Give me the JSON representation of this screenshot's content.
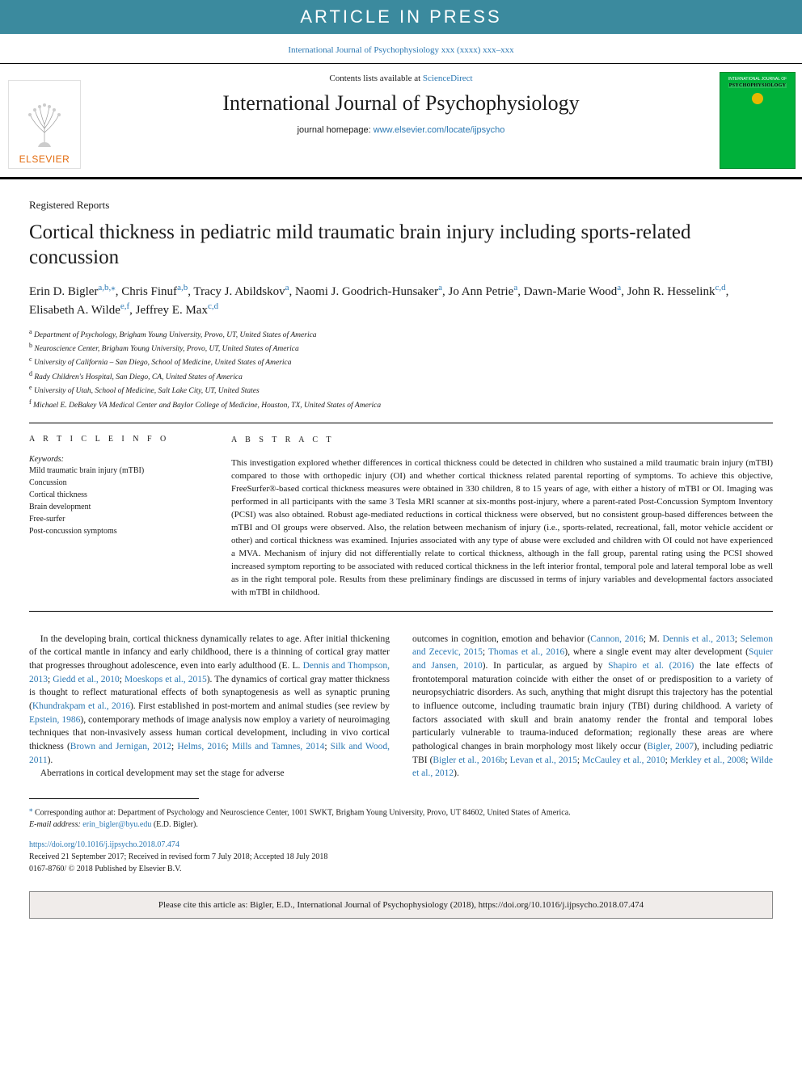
{
  "banner": "ARTICLE IN PRESS",
  "toplink_text": "International Journal of Psychophysiology xxx (xxxx) xxx–xxx",
  "header": {
    "contents_prefix": "Contents lists available at ",
    "contents_link": "ScienceDirect",
    "journal_name": "International Journal of Psychophysiology",
    "homepage_prefix": "journal homepage: ",
    "homepage_link": "www.elsevier.com/locate/ijpsycho",
    "elsevier": "ELSEVIER",
    "cover_top": "INTERNATIONAL JOURNAL OF",
    "cover_title": "PSYCHOPHYSIOLOGY"
  },
  "article_type": "Registered Reports",
  "title": "Cortical thickness in pediatric mild traumatic brain injury including sports-related concussion",
  "authors_html": "Erin D. Bigler<a>a</a><span class='star'>,</span><a>b</a><span class='star'>,</span><span class='star'>⁎</span>, Chris Finuf<a>a</a><span class='star'>,</span><a>b</a>, Tracy J. Abildskov<a>a</a>, Naomi J. Goodrich-Hunsaker<a>a</a>, Jo Ann Petrie<a>a</a>, Dawn-Marie Wood<a>a</a>, John R. Hesselink<a>c</a><span class='star'>,</span><a>d</a>, Elisabeth A. Wilde<a>e</a><span class='star'>,</span><a>f</a>, Jeffrey E. Max<a>c</a><span class='star'>,</span><a>d</a>",
  "affiliations": [
    {
      "sup": "a",
      "text": "Department of Psychology, Brigham Young University, Provo, UT, United States of America"
    },
    {
      "sup": "b",
      "text": "Neuroscience Center, Brigham Young University, Provo, UT, United States of America"
    },
    {
      "sup": "c",
      "text": "University of California – San Diego, School of Medicine, United States of America"
    },
    {
      "sup": "d",
      "text": "Rady Children's Hospital, San Diego, CA, United States of America"
    },
    {
      "sup": "e",
      "text": "University of Utah, School of Medicine, Salt Lake City, UT, United States"
    },
    {
      "sup": "f",
      "text": "Michael E. DeBakey VA Medical Center and Baylor College of Medicine, Houston, TX, United States of America"
    }
  ],
  "info_head": "A R T I C L E  I N F O",
  "keywords_head": "Keywords:",
  "keywords": [
    "Mild traumatic brain injury (mTBI)",
    "Concussion",
    "Cortical thickness",
    "Brain development",
    "Free-surfer",
    "Post-concussion symptoms"
  ],
  "abstract_head": "A B S T R A C T",
  "abstract": "This investigation explored whether differences in cortical thickness could be detected in children who sustained a mild traumatic brain injury (mTBI) compared to those with orthopedic injury (OI) and whether cortical thickness related parental reporting of symptoms. To achieve this objective, FreeSurfer®-based cortical thickness measures were obtained in 330 children, 8 to 15 years of age, with either a history of mTBI or OI. Imaging was performed in all participants with the same 3 Tesla MRI scanner at six-months post-injury, where a parent-rated Post-Concussion Symptom Inventory (PCSI) was also obtained. Robust age-mediated reductions in cortical thickness were observed, but no consistent group-based differences between the mTBI and OI groups were observed. Also, the relation between mechanism of injury (i.e., sports-related, recreational, fall, motor vehicle accident or other) and cortical thickness was examined. Injuries associated with any type of abuse were excluded and children with OI could not have experienced a MVA. Mechanism of injury did not differentially relate to cortical thickness, although in the fall group, parental rating using the PCSI showed increased symptom reporting to be associated with reduced cortical thickness in the left interior frontal, temporal pole and lateral temporal lobe as well as in the right temporal pole. Results from these preliminary findings are discussed in terms of injury variables and developmental factors associated with mTBI in childhood.",
  "body_p1": "In the developing brain, cortical thickness dynamically relates to age. After initial thickening of the cortical mantle in infancy and early childhood, there is a thinning of cortical gray matter that progresses throughout adolescence, even into early adulthood (E. L. <a>Dennis and Thompson, 2013</a>; <a>Giedd et al., 2010</a>; <a>Moeskops et al., 2015</a>). The dynamics of cortical gray matter thickness is thought to reflect maturational effects of both synaptogenesis as well as synaptic pruning (<a>Khundrakpam et al., 2016</a>). First established in post-mortem and animal studies (see review by <a>Epstein, 1986</a>), contemporary methods of image analysis now employ a variety of neuroimaging techniques that non-invasively assess human cortical development, including in vivo cortical thickness (<a>Brown and Jernigan, 2012</a>; <a>Helms, 2016</a>; <a>Mills and Tamnes, 2014</a>; <a>Silk and Wood, 2011</a>).",
  "body_p2": "Aberrations in cortical development may set the stage for adverse",
  "body_p3": "outcomes in cognition, emotion and behavior (<a>Cannon, 2016</a>; M. <a>Dennis et al., 2013</a>; <a>Selemon and Zecevic, 2015</a>; <a>Thomas et al., 2016</a>), where a single event may alter development (<a>Squier and Jansen, 2010</a>). In particular, as argued by <a>Shapiro et al. (2016)</a> the late effects of frontotemporal maturation coincide with either the onset of or predisposition to a variety of neuropsychiatric disorders. As such, anything that might disrupt this trajectory has the potential to influence outcome, including traumatic brain injury (TBI) during childhood. A variety of factors associated with skull and brain anatomy render the frontal and temporal lobes particularly vulnerable to trauma-induced deformation; regionally these areas are where pathological changes in brain morphology most likely occur (<a>Bigler, 2007</a>), including pediatric TBI (<a>Bigler et al., 2016b</a>; <a>Levan et al., 2015</a>; <a>McCauley et al., 2010</a>; <a>Merkley et al., 2008</a>; <a>Wilde et al., 2012</a>).",
  "footnote_corr": "Corresponding author at: Department of Psychology and Neuroscience Center, 1001 SWKT, Brigham Young University, Provo, UT 84602, United States of America.",
  "footnote_email_label": "E-mail address:",
  "footnote_email": "erin_bigler@byu.edu",
  "footnote_email_paren": "(E.D. Bigler).",
  "doi": "https://doi.org/10.1016/j.ijpsycho.2018.07.474",
  "history": "Received 21 September 2017; Received in revised form 7 July 2018; Accepted 18 July 2018",
  "copyright": "0167-8760/ © 2018 Published by Elsevier B.V.",
  "cite_box": "Please cite this article as: Bigler, E.D., International Journal of Psychophysiology (2018), https://doi.org/10.1016/j.ijpsycho.2018.07.474",
  "colors": {
    "banner_bg": "#3b8a9e",
    "link": "#2b78b3",
    "elsevier_orange": "#e36c0f",
    "cover_green": "#00b13a",
    "cover_dot": "#e8b700",
    "cite_bg": "#f0ecea"
  }
}
